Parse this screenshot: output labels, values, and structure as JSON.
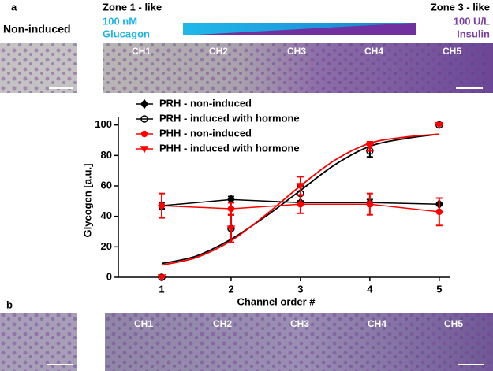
{
  "panels": {
    "a": {
      "letter": "a",
      "control": "Non-induced",
      "zone1": "Zone 1 - like",
      "zone1_dose": "100 nM",
      "zone1_drug": "Glucagon",
      "zone3": "Zone 3 - like",
      "zone3_dose": "100 U/L",
      "zone3_drug": "Insulin",
      "channels": [
        "CH1",
        "CH2",
        "CH3",
        "CH4",
        "CH5"
      ]
    },
    "b": {
      "letter": "b",
      "channels": [
        "CH1",
        "CH2",
        "CH3",
        "CH4",
        "CH5"
      ]
    }
  },
  "chart_data": {
    "type": "line",
    "x_label": "Channel order #",
    "y_label": "Glycogen [a.u.]",
    "x": [
      1,
      2,
      3,
      4,
      5
    ],
    "xlim": [
      0.375,
      5.15
    ],
    "xticks": [
      1,
      2,
      3,
      4,
      5
    ],
    "ylim": [
      0,
      105
    ],
    "yticks": [
      0,
      20,
      40,
      60,
      80,
      100
    ],
    "legend": "top-left",
    "series": [
      {
        "name": "PRH - non-induced",
        "color": "#000000",
        "marker": "diamond",
        "values": [
          47,
          51,
          49,
          49,
          48
        ],
        "errors": [
          2,
          2,
          1,
          2,
          1
        ]
      },
      {
        "name": "PRH - induced with hormone",
        "color": "#000000",
        "marker": "open-circle",
        "values": [
          0,
          32,
          55,
          83,
          100
        ],
        "errors": [
          0,
          9,
          5,
          4,
          0
        ],
        "fit_x": [
          1,
          1.5,
          2,
          2.5,
          3,
          3.5,
          4,
          4.5,
          5
        ],
        "fit": [
          9,
          14,
          25,
          40,
          57,
          74,
          86,
          91,
          94
        ]
      },
      {
        "name": "PHH - non-induced",
        "color": "#ff0000",
        "marker": "circle",
        "values": [
          47,
          45,
          48,
          48,
          43
        ],
        "errors": [
          8,
          4,
          6,
          7,
          9
        ]
      },
      {
        "name": "PHH - induced with hormone",
        "color": "#ff0000",
        "marker": "triangle-down",
        "values": [
          0,
          32,
          60,
          86,
          100
        ],
        "errors": [
          0,
          9,
          6,
          3,
          0
        ],
        "fit_x": [
          1,
          1.5,
          2,
          2.5,
          3,
          3.5,
          4,
          4.5,
          5
        ],
        "fit": [
          8,
          13,
          24,
          41,
          60,
          77,
          88,
          92,
          94
        ]
      }
    ]
  }
}
